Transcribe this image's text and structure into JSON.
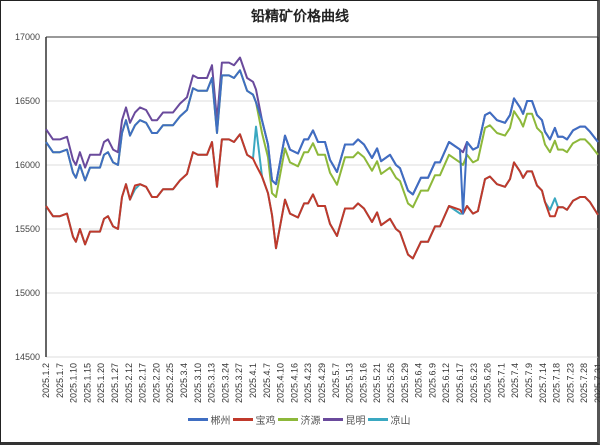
{
  "chart_data": {
    "type": "line",
    "title": "铅精矿价格曲线",
    "xlabel": "",
    "ylabel": "",
    "ylim": [
      14500,
      17000
    ],
    "yticks": [
      14500,
      15000,
      15500,
      16000,
      16500,
      17000
    ],
    "grid": true,
    "legend_position": "bottom",
    "categories": [
      "2025.1.2",
      "2025.1.7",
      "2025.1.10",
      "2025.1.15",
      "2025.1.20",
      "2025.1.27",
      "2025.2.12",
      "2025.2.17",
      "2025.2.20",
      "2025.2.25",
      "2025.3.4",
      "2025.3.10",
      "2025.3.13",
      "2025.3.24",
      "2025.3.27",
      "2025.4.1",
      "2025.4.7",
      "2025.4.10",
      "2025.4.16",
      "2025.4.23",
      "2025.4.29",
      "2025.5.7",
      "2025.5.13",
      "2025.5.16",
      "2025.5.21",
      "2025.5.26",
      "2025.5.29",
      "2025.6.4",
      "2025.6.9",
      "2025.6.12",
      "2025.6.17",
      "2025.6.23",
      "2025.6.26",
      "2025.7.1",
      "2025.7.4",
      "2025.7.9",
      "2025.7.14",
      "2025.7.18",
      "2025.7.23",
      "2025.7.28",
      "2025.7.31"
    ],
    "x": [
      0,
      0.51,
      1.01,
      1.52,
      1.96,
      2.17,
      2.46,
      2.83,
      3.19,
      3.91,
      4.2,
      4.49,
      4.86,
      5.22,
      5.51,
      5.8,
      6.09,
      6.45,
      6.81,
      7.25,
      7.68,
      8.04,
      8.48,
      9.2,
      9.71,
      10.22,
      10.65,
      11.01,
      11.67,
      12.03,
      12.39,
      12.75,
      13.26,
      13.62,
      14.06,
      14.57,
      15,
      15.22,
      15.65,
      16.09,
      16.38,
      16.67,
      17.32,
      17.68,
      18.26,
      18.7,
      18.99,
      19.35,
      19.71,
      20.22,
      20.58,
      20.8,
      21.09,
      21.67,
      22.25,
      22.61,
      23.04,
      23.62,
      23.99,
      24.28,
      24.93,
      25.36,
      25.65,
      26.23,
      26.59,
      27.17,
      27.68,
      28.19,
      28.55,
      29.2,
      30,
      30.22,
      30.51,
      30.94,
      31.3,
      31.81,
      32.17,
      32.68,
      33.26,
      33.62,
      33.91,
      34.35,
      34.57,
      34.86,
      35.22,
      35.58,
      35.94,
      36.16,
      36.52,
      36.88,
      37.1,
      37.46,
      37.75,
      38.19,
      38.7,
      39.06,
      39.42,
      40
    ],
    "series": [
      {
        "name": "郴州",
        "color": "#3f6ec2",
        "values": [
          16180,
          16100,
          16100,
          16120,
          15940,
          15900,
          16000,
          15880,
          15980,
          15980,
          16080,
          16100,
          16020,
          16000,
          16250,
          16350,
          16230,
          16310,
          16350,
          16330,
          16250,
          16250,
          16310,
          16310,
          16380,
          16430,
          16600,
          16580,
          16580,
          16680,
          16250,
          16700,
          16700,
          16680,
          16740,
          16580,
          16550,
          16490,
          16350,
          16160,
          15880,
          15850,
          16230,
          16120,
          16090,
          16200,
          16200,
          16270,
          16180,
          16180,
          16040,
          16000,
          15945,
          16160,
          16160,
          16200,
          16160,
          16055,
          16130,
          16030,
          16080,
          16000,
          15975,
          15800,
          15770,
          15900,
          15900,
          16020,
          16020,
          16180,
          16120,
          15620,
          16180,
          16120,
          16140,
          16390,
          16410,
          16350,
          16330,
          16390,
          16520,
          16450,
          16400,
          16500,
          16500,
          16390,
          16350,
          16260,
          16200,
          16290,
          16220,
          16220,
          16200,
          16270,
          16300,
          16300,
          16260,
          16180
        ]
      },
      {
        "name": "宝鸡",
        "color": "#c0392b",
        "values": [
          15680,
          15600,
          15600,
          15620,
          15440,
          15400,
          15500,
          15380,
          15480,
          15480,
          15580,
          15600,
          15520,
          15500,
          15750,
          15850,
          15730,
          15840,
          15850,
          15830,
          15750,
          15750,
          15810,
          15810,
          15880,
          15930,
          16100,
          16080,
          16080,
          16180,
          15830,
          16200,
          16200,
          16180,
          16240,
          16080,
          16050,
          16000,
          15910,
          15780,
          15610,
          15350,
          15730,
          15620,
          15590,
          15700,
          15700,
          15770,
          15680,
          15680,
          15540,
          15500,
          15445,
          15660,
          15660,
          15700,
          15660,
          15555,
          15630,
          15530,
          15580,
          15500,
          15475,
          15300,
          15270,
          15400,
          15400,
          15520,
          15520,
          15680,
          15650,
          15620,
          15680,
          15620,
          15640,
          15890,
          15910,
          15850,
          15830,
          15890,
          16020,
          15950,
          15900,
          15950,
          15950,
          15840,
          15800,
          15710,
          15600,
          15600,
          15670,
          15670,
          15650,
          15720,
          15750,
          15750,
          15710,
          15610
        ]
      },
      {
        "name": "济源",
        "color": "#8db83a",
        "values": [
          16180,
          16100,
          16100,
          16120,
          15940,
          15900,
          16000,
          15880,
          15980,
          15980,
          16080,
          16100,
          16020,
          16000,
          16250,
          16350,
          16230,
          16310,
          16350,
          16330,
          16250,
          16250,
          16310,
          16310,
          16380,
          16430,
          16600,
          16580,
          16580,
          16680,
          16250,
          16700,
          16700,
          16680,
          16740,
          16580,
          16550,
          16490,
          16250,
          16060,
          15780,
          15750,
          16130,
          16020,
          15990,
          16100,
          16100,
          16170,
          16080,
          16080,
          15940,
          15900,
          15845,
          16060,
          16060,
          16100,
          16060,
          15955,
          16030,
          15930,
          15980,
          15900,
          15875,
          15700,
          15670,
          15800,
          15800,
          15920,
          15920,
          16080,
          16020,
          16000,
          16080,
          16020,
          16040,
          16290,
          16310,
          16250,
          16230,
          16290,
          16420,
          16350,
          16300,
          16400,
          16400,
          16290,
          16250,
          16160,
          16100,
          16190,
          16120,
          16120,
          16100,
          16170,
          16200,
          16200,
          16160,
          16080
        ]
      },
      {
        "name": "昆明",
        "color": "#6a4a9c",
        "values": [
          16280,
          16200,
          16200,
          16220,
          16040,
          16000,
          16100,
          15980,
          16080,
          16080,
          16180,
          16200,
          16120,
          16100,
          16350,
          16450,
          16330,
          16410,
          16450,
          16430,
          16350,
          16350,
          16410,
          16410,
          16480,
          16530,
          16700,
          16680,
          16680,
          16780,
          16350,
          16800,
          16800,
          16780,
          16840,
          16680,
          16650,
          16590,
          16350,
          16160,
          15880,
          15850,
          16230,
          16120,
          16090,
          16200,
          16200,
          16270,
          16180,
          16180,
          16040,
          16000,
          15945,
          16160,
          16160,
          16200,
          16160,
          16055,
          16130,
          16030,
          16080,
          16000,
          15975,
          15800,
          15770,
          15900,
          15900,
          16020,
          16020,
          16180,
          16120,
          16100,
          16180,
          16120,
          16140,
          16390,
          16410,
          16350,
          16330,
          16390,
          16520,
          16450,
          16400,
          16500,
          16500,
          16390,
          16350,
          16260,
          16200,
          16290,
          16220,
          16220,
          16200,
          16270,
          16300,
          16300,
          16260,
          16180
        ]
      },
      {
        "name": "凉山",
        "color": "#3aa8c1",
        "values": [
          15680,
          15600,
          15600,
          15620,
          15440,
          15400,
          15500,
          15380,
          15480,
          15480,
          15580,
          15600,
          15520,
          15500,
          15750,
          15850,
          15730,
          15810,
          15850,
          15830,
          15750,
          15750,
          15810,
          15810,
          15880,
          15930,
          16100,
          16080,
          16080,
          16180,
          15830,
          16200,
          16200,
          16180,
          16240,
          16080,
          16050,
          16300,
          15910,
          15780,
          15610,
          15350,
          15730,
          15620,
          15590,
          15700,
          15700,
          15770,
          15680,
          15680,
          15540,
          15500,
          15445,
          15660,
          15660,
          15700,
          15660,
          15555,
          15630,
          15530,
          15580,
          15500,
          15475,
          15300,
          15270,
          15400,
          15400,
          15520,
          15520,
          15680,
          15620,
          15620,
          15680,
          15620,
          15640,
          15890,
          15910,
          15850,
          15830,
          15890,
          16020,
          15950,
          15900,
          15950,
          15950,
          15840,
          15800,
          15710,
          15650,
          15740,
          15670,
          15670,
          15650,
          15720,
          15750,
          15750,
          15710,
          15610
        ]
      }
    ]
  }
}
